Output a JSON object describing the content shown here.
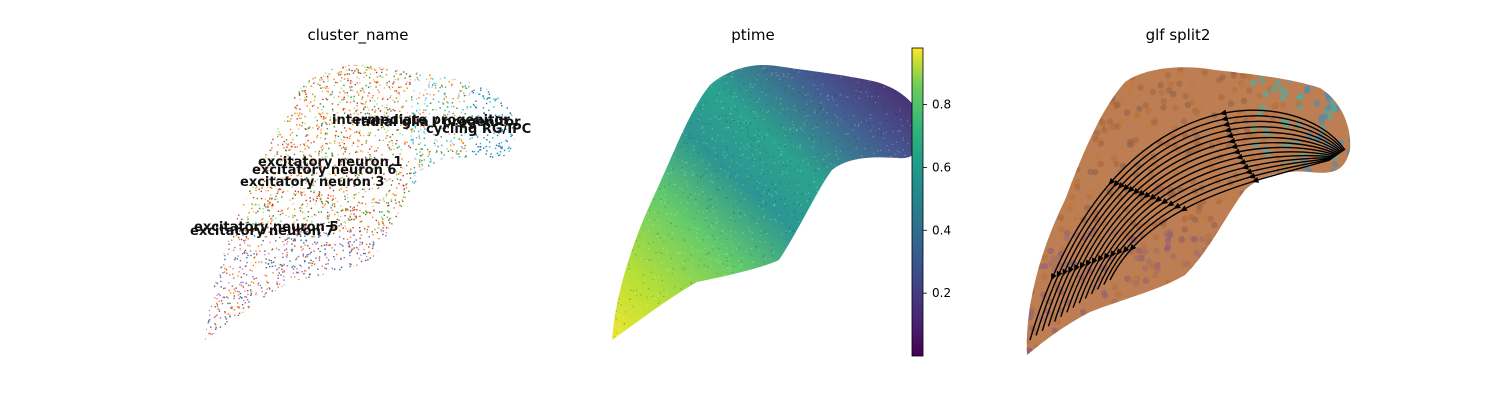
{
  "chart_data": [
    {
      "type": "scatter",
      "title": "cluster_name",
      "grid": false,
      "legend": "on data",
      "point_colors": [
        "#1f77b4",
        "#17becf",
        "#aec7e8",
        "#ff7f0e",
        "#ffbb78",
        "#2ca02c",
        "#98df8a",
        "#d62728",
        "#9467bd",
        "#8c564b",
        "#e377c2",
        "#bcbd22"
      ],
      "labels": [
        "intermediate progenitor",
        "radial glia / progenitor",
        "cycling RG/IPC",
        "excitatory neuron 1",
        "excitatory neuron 6",
        "excitatory neuron 3",
        "excitatory neuron 5",
        "excitatory neuron 7"
      ]
    },
    {
      "type": "scatter",
      "title": "ptime",
      "grid": false,
      "colormap": "viridis",
      "colorbar": {
        "ticks": [
          "0.2",
          "0.4",
          "0.6",
          "0.8"
        ],
        "tick_values": [
          0.2,
          0.4,
          0.6,
          0.8
        ],
        "range": [
          0.0,
          0.98
        ]
      }
    },
    {
      "type": "streamplot",
      "title": "glf split2",
      "grid": false,
      "arrow_color": "#000000"
    }
  ]
}
